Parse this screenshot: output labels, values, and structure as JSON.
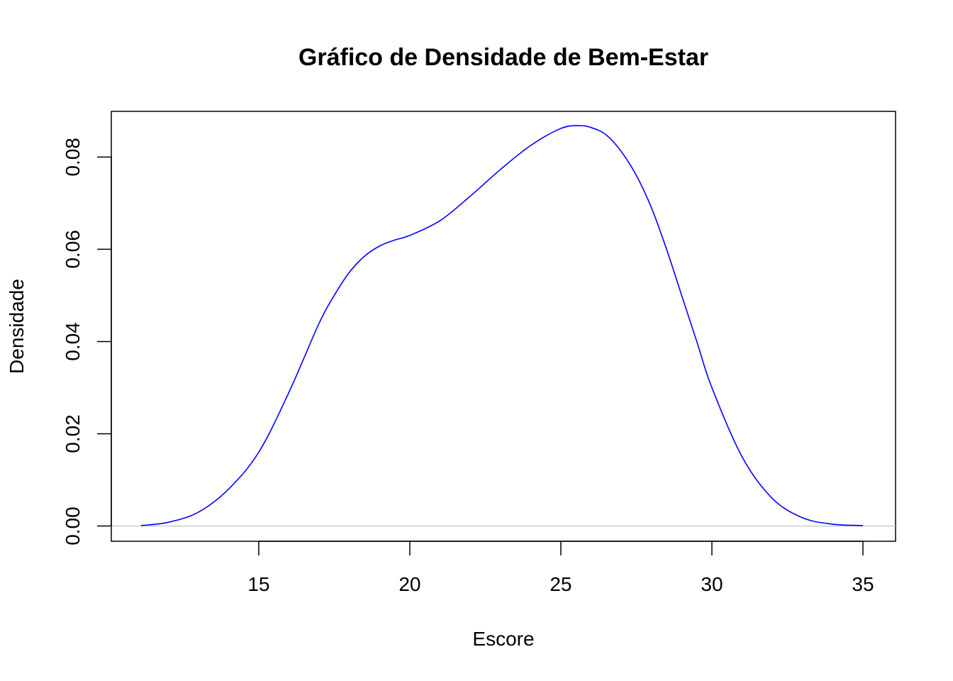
{
  "chart_data": {
    "type": "line",
    "title": "Gráfico de Densidade de Bem-Estar",
    "xlabel": "Escore",
    "ylabel": "Densidade",
    "xlim": [
      10.12,
      36.08
    ],
    "ylim": [
      -0.0033,
      0.0899
    ],
    "x_ticks": [
      15,
      20,
      25,
      30,
      35
    ],
    "y_ticks": [
      0.0,
      0.02,
      0.04,
      0.06,
      0.08
    ],
    "x_tick_labels": [
      "15",
      "20",
      "25",
      "30",
      "35"
    ],
    "y_tick_labels": [
      "0.00",
      "0.02",
      "0.04",
      "0.06",
      "0.08"
    ],
    "grid": false,
    "baseline": 0,
    "line_color": "#0000ff",
    "baseline_color": "#bebebe",
    "series": [
      {
        "x": [
          11.1,
          12.0,
          13.0,
          14.0,
          15.0,
          16.0,
          17.0,
          17.5,
          18.0,
          18.5,
          19.0,
          19.5,
          20.0,
          21.0,
          22.0,
          23.0,
          24.0,
          25.0,
          25.6,
          26.0,
          26.5,
          27.0,
          27.5,
          28.0,
          28.5,
          29.0,
          29.5,
          30.0,
          31.0,
          32.0,
          33.0,
          34.0,
          35.0
        ],
        "y": [
          0.0001,
          0.0008,
          0.003,
          0.008,
          0.016,
          0.029,
          0.044,
          0.05,
          0.055,
          0.0585,
          0.0607,
          0.062,
          0.063,
          0.0662,
          0.0715,
          0.0773,
          0.0825,
          0.0862,
          0.0868,
          0.0864,
          0.0848,
          0.0812,
          0.076,
          0.069,
          0.06,
          0.05,
          0.04,
          0.03,
          0.015,
          0.006,
          0.0018,
          0.0004,
          0.0001
        ]
      }
    ]
  }
}
